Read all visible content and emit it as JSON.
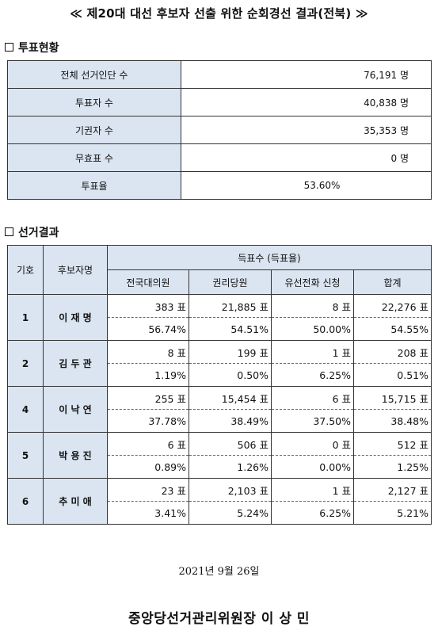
{
  "title": "≪ 제20대 대선 후보자 선출 위한 순회경선 결과(전북) ≫",
  "summary": {
    "heading": "투표현황",
    "rows": [
      {
        "label": "전체 선거인단 수",
        "value": "76,191 명"
      },
      {
        "label": "투표자 수",
        "value": "40,838 명"
      },
      {
        "label": "기권자 수",
        "value": "35,353 명"
      },
      {
        "label": "무효표 수",
        "value": "0 명"
      },
      {
        "label": "투표율",
        "value": "53.60%"
      }
    ]
  },
  "results": {
    "heading": "선거결과",
    "headers": {
      "no": "기호",
      "name": "후보자명",
      "group": "득표수 (득표율)",
      "cols": [
        "전국대의원",
        "권리당원",
        "유선전화 신청",
        "합계"
      ]
    },
    "candidates": [
      {
        "no": "1",
        "name": "이 재 명",
        "votes": [
          "383 표",
          "21,885 표",
          "8 표",
          "22,276 표"
        ],
        "rates": [
          "56.74%",
          "54.51%",
          "50.00%",
          "54.55%"
        ]
      },
      {
        "no": "2",
        "name": "김 두 관",
        "votes": [
          "8 표",
          "199 표",
          "1 표",
          "208 표"
        ],
        "rates": [
          "1.19%",
          "0.50%",
          "6.25%",
          "0.51%"
        ]
      },
      {
        "no": "4",
        "name": "이 낙 연",
        "votes": [
          "255 표",
          "15,454 표",
          "6 표",
          "15,715 표"
        ],
        "rates": [
          "37.78%",
          "38.49%",
          "37.50%",
          "38.48%"
        ]
      },
      {
        "no": "5",
        "name": "박 용 진",
        "votes": [
          "6 표",
          "506 표",
          "0 표",
          "512 표"
        ],
        "rates": [
          "0.89%",
          "1.26%",
          "0.00%",
          "1.25%"
        ]
      },
      {
        "no": "6",
        "name": "추 미 애",
        "votes": [
          "23 표",
          "2,103 표",
          "1 표",
          "2,127 표"
        ],
        "rates": [
          "3.41%",
          "5.24%",
          "6.25%",
          "5.21%"
        ]
      }
    ]
  },
  "date": "2021년 9월 26일",
  "signer": "중앙당선거관리위원장 이 상 민"
}
